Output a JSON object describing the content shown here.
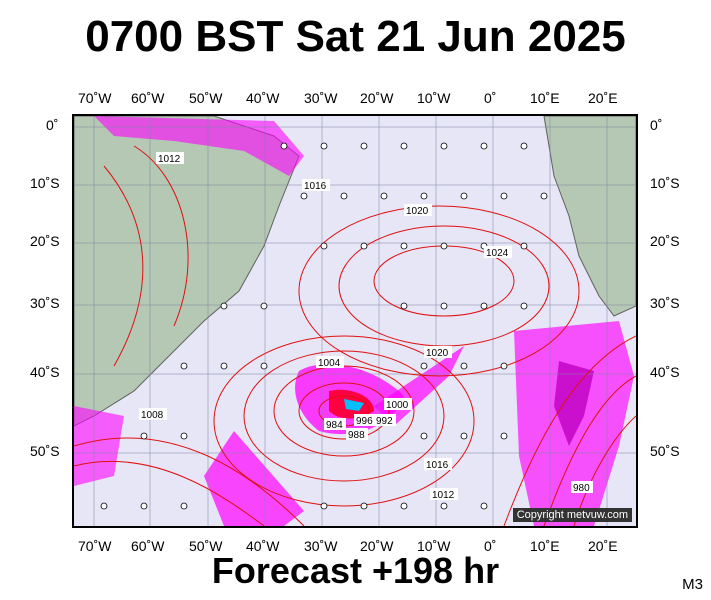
{
  "header": {
    "title": "0700 BST Sat 21 Jun 2025"
  },
  "footer": {
    "forecast": "Forecast +198 hr",
    "model": "M3"
  },
  "map": {
    "copyright": "Copyright metvuw.com",
    "lon_labels": [
      "70˚W",
      "60˚W",
      "50˚W",
      "40˚W",
      "30˚W",
      "20˚W",
      "10˚W",
      "0˚",
      "10˚E",
      "20˚E"
    ],
    "lat_labels": [
      "0˚",
      "10˚S",
      "20˚S",
      "30˚S",
      "40˚S",
      "50˚S"
    ],
    "isobar_labels": [
      "1012",
      "1016",
      "1020",
      "1024",
      "1020",
      "1016",
      "1012",
      "1008",
      "1004",
      "1000",
      "996",
      "992",
      "988",
      "984",
      "980"
    ],
    "colors": {
      "ocean": "#e6e6f7",
      "land": "#b4c8b4",
      "isobar": "#e01010",
      "rain_light": "#ff00ff",
      "rain_heavy": "#ff0040",
      "rain_core": "#00c0ff"
    }
  }
}
